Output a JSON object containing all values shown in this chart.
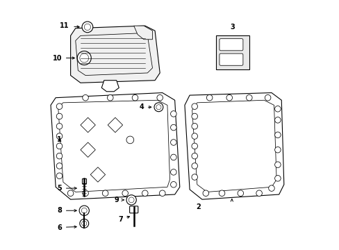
{
  "bg_color": "#ffffff",
  "line_color": "#000000",
  "fig_width": 4.89,
  "fig_height": 3.6,
  "dpi": 100,
  "label_fontsize": 7,
  "lw": 0.8
}
